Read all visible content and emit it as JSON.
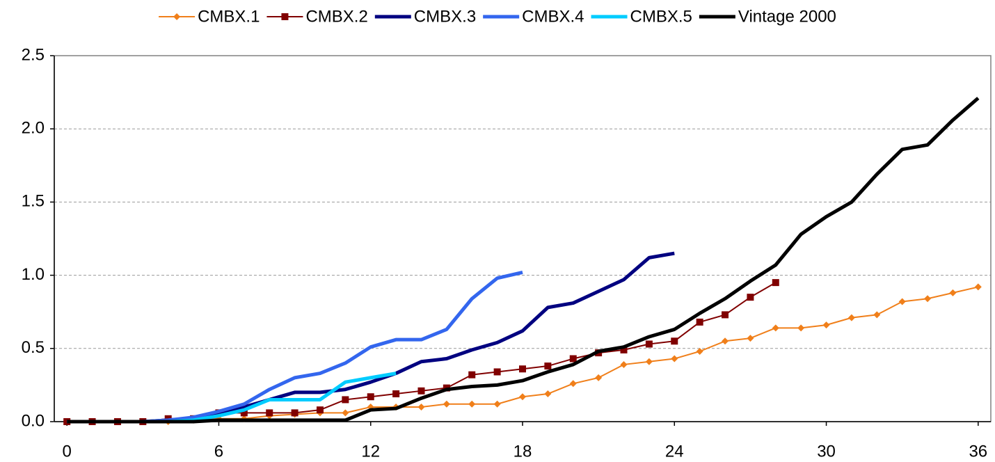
{
  "chart_data": {
    "type": "line",
    "x": [
      0,
      1,
      2,
      3,
      4,
      5,
      6,
      7,
      8,
      9,
      10,
      11,
      12,
      13,
      14,
      15,
      16,
      17,
      18,
      19,
      20,
      21,
      22,
      23,
      24,
      25,
      26,
      27,
      28,
      29,
      30,
      31,
      32,
      33,
      34,
      35,
      36
    ],
    "series": [
      {
        "name": "CMBX.1",
        "color": "#f07f1a",
        "line_width": 2,
        "marker": "diamond",
        "values": [
          0,
          0,
          0,
          0,
          0,
          0.01,
          0.02,
          0.02,
          0.04,
          0.05,
          0.06,
          0.06,
          0.1,
          0.1,
          0.1,
          0.12,
          0.12,
          0.12,
          0.17,
          0.19,
          0.26,
          0.3,
          0.39,
          0.41,
          0.43,
          0.48,
          0.55,
          0.57,
          0.64,
          0.64,
          0.66,
          0.71,
          0.73,
          0.82,
          0.84,
          0.88,
          0.92
        ]
      },
      {
        "name": "CMBX.2",
        "color": "#800000",
        "line_width": 2,
        "marker": "square",
        "values": [
          0,
          0,
          0,
          0,
          0.02,
          0.02,
          0.06,
          0.06,
          0.06,
          0.06,
          0.08,
          0.15,
          0.17,
          0.19,
          0.21,
          0.23,
          0.32,
          0.34,
          0.36,
          0.38,
          0.43,
          0.47,
          0.49,
          0.53,
          0.55,
          0.68,
          0.73,
          0.85,
          0.95,
          null,
          null,
          null,
          null,
          null,
          null,
          null,
          null
        ]
      },
      {
        "name": "CMBX.3",
        "color": "#000080",
        "line_width": 5,
        "marker": null,
        "values": [
          0,
          0,
          0,
          0,
          0.01,
          0.02,
          0.06,
          0.1,
          0.15,
          0.2,
          0.2,
          0.22,
          0.27,
          0.33,
          0.41,
          0.43,
          0.49,
          0.54,
          0.62,
          0.78,
          0.81,
          0.89,
          0.97,
          1.12,
          1.15,
          null,
          null,
          null,
          null,
          null,
          null,
          null,
          null,
          null,
          null,
          null,
          null
        ]
      },
      {
        "name": "CMBX.4",
        "color": "#3366ee",
        "line_width": 5,
        "marker": null,
        "values": [
          0,
          0,
          0,
          0,
          0.01,
          0.03,
          0.07,
          0.12,
          0.22,
          0.3,
          0.33,
          0.4,
          0.51,
          0.56,
          0.56,
          0.63,
          0.84,
          0.98,
          1.02,
          null,
          null,
          null,
          null,
          null,
          null,
          null,
          null,
          null,
          null,
          null,
          null,
          null,
          null,
          null,
          null,
          null,
          null
        ]
      },
      {
        "name": "CMBX.5",
        "color": "#00ccff",
        "line_width": 5,
        "marker": null,
        "values": [
          0,
          0,
          0,
          0,
          0,
          0.01,
          0.04,
          0.08,
          0.15,
          0.15,
          0.15,
          0.27,
          0.3,
          0.33,
          null,
          null,
          null,
          null,
          null,
          null,
          null,
          null,
          null,
          null,
          null,
          null,
          null,
          null,
          null,
          null,
          null,
          null,
          null,
          null,
          null,
          null,
          null
        ]
      },
      {
        "name": "Vintage 2000",
        "color": "#000000",
        "line_width": 5,
        "marker": null,
        "values": [
          0,
          0,
          0,
          0,
          0,
          0,
          0.01,
          0.01,
          0.01,
          0.01,
          0.01,
          0.01,
          0.08,
          0.09,
          0.16,
          0.22,
          0.24,
          0.25,
          0.28,
          0.34,
          0.39,
          0.48,
          0.51,
          0.58,
          0.63,
          0.74,
          0.84,
          0.96,
          1.07,
          1.28,
          1.4,
          1.5,
          1.69,
          1.86,
          1.89,
          2.06,
          2.21
        ]
      }
    ],
    "xlim": [
      -0.5,
      36.5
    ],
    "xticks": [
      0,
      6,
      12,
      18,
      24,
      30,
      36
    ],
    "ylim": [
      0,
      2.5
    ],
    "yticks": [
      {
        "value": 0,
        "label": "0.0"
      },
      {
        "value": 0.5,
        "label": "0.5"
      },
      {
        "value": 1,
        "label": "1.0"
      },
      {
        "value": 1.5,
        "label": "1.5"
      },
      {
        "value": 2,
        "label": "2.0"
      },
      {
        "value": 2.5,
        "label": "2.5"
      }
    ],
    "grid": true,
    "legend": "top"
  }
}
